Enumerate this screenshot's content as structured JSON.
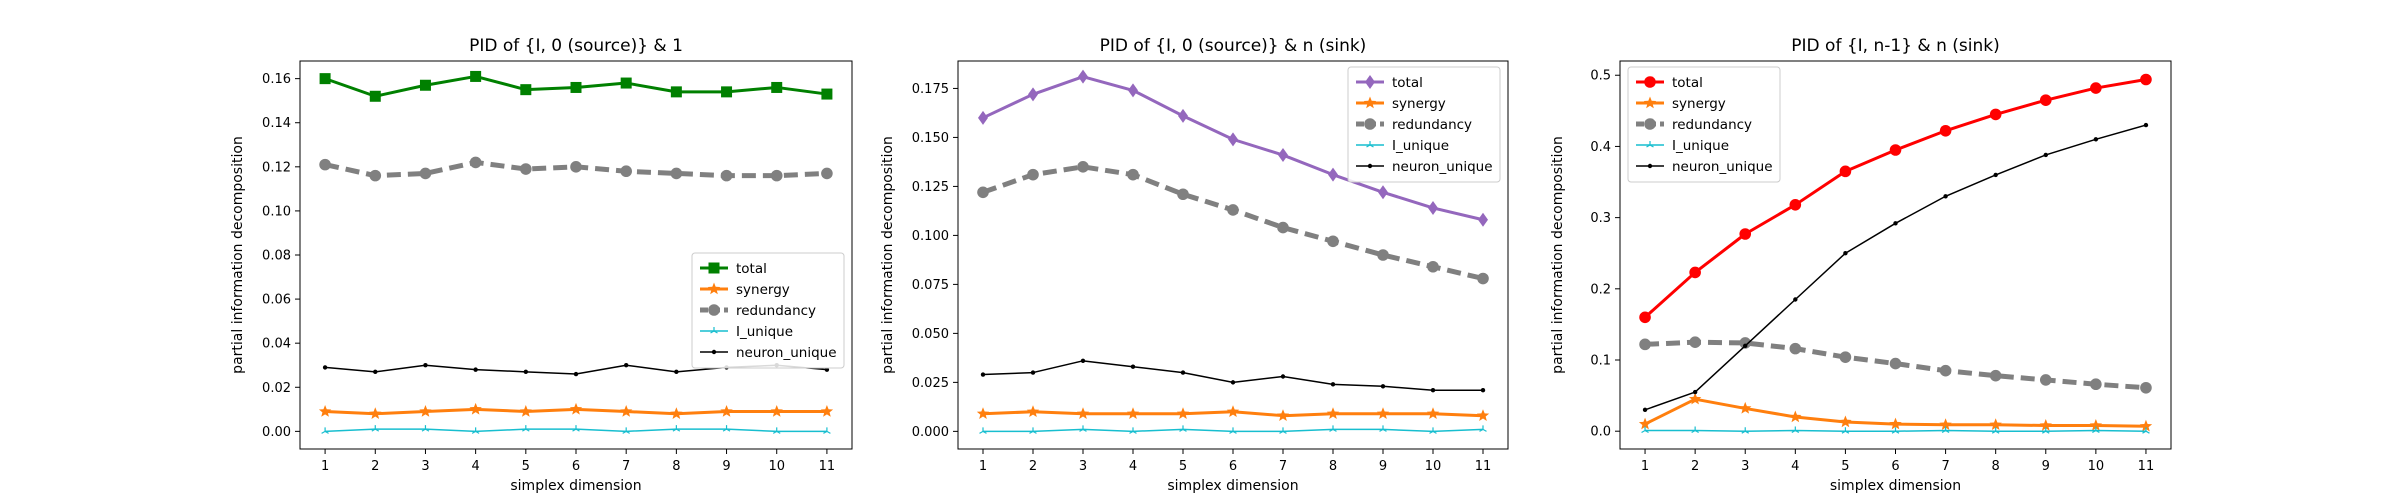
{
  "chart_data": [
    {
      "type": "line",
      "title": "PID of {I, 0 (source)} & 1",
      "xlabel": "simplex dimension",
      "ylabel": "partial information decomposition",
      "x": [
        1,
        2,
        3,
        4,
        5,
        6,
        7,
        8,
        9,
        10,
        11
      ],
      "xlim": [
        0.5,
        11.5
      ],
      "ylim": [
        -0.008,
        0.168
      ],
      "yticks": [
        0.0,
        0.02,
        0.04,
        0.06,
        0.08,
        0.1,
        0.12,
        0.14,
        0.16
      ],
      "yticklabels": [
        "0.00",
        "0.02",
        "0.04",
        "0.06",
        "0.08",
        "0.10",
        "0.12",
        "0.14",
        "0.16"
      ],
      "legend_position": "center-right",
      "series": [
        {
          "name": "total",
          "color": "#008000",
          "marker": "square",
          "dash": "solid",
          "values": [
            0.16,
            0.152,
            0.157,
            0.161,
            0.155,
            0.156,
            0.158,
            0.154,
            0.154,
            0.156,
            0.153
          ]
        },
        {
          "name": "synergy",
          "color": "#ff7f0e",
          "marker": "star",
          "dash": "solid",
          "values": [
            0.009,
            0.008,
            0.009,
            0.01,
            0.009,
            0.01,
            0.009,
            0.008,
            0.009,
            0.009,
            0.009
          ]
        },
        {
          "name": "redundancy",
          "color": "#808080",
          "marker": "circle",
          "dash": "dashed",
          "values": [
            0.121,
            0.116,
            0.117,
            0.122,
            0.119,
            0.12,
            0.118,
            0.117,
            0.116,
            0.116,
            0.117
          ]
        },
        {
          "name": "I_unique",
          "color": "#17becf",
          "marker": "tri",
          "dash": "solid",
          "values": [
            0.0,
            0.001,
            0.001,
            0.0,
            0.001,
            0.001,
            0.0,
            0.001,
            0.001,
            0.0,
            0.0
          ]
        },
        {
          "name": "neuron_unique",
          "color": "#000000",
          "marker": "dot",
          "dash": "solid",
          "values": [
            0.029,
            0.027,
            0.03,
            0.028,
            0.027,
            0.026,
            0.03,
            0.027,
            0.029,
            0.03,
            0.028
          ]
        }
      ]
    },
    {
      "type": "line",
      "title": "PID of {I, 0 (source)} & n (sink)",
      "xlabel": "simplex dimension",
      "ylabel": "partial information decomposition",
      "x": [
        1,
        2,
        3,
        4,
        5,
        6,
        7,
        8,
        9,
        10,
        11
      ],
      "xlim": [
        0.5,
        11.5
      ],
      "ylim": [
        -0.009,
        0.189
      ],
      "yticks": [
        0.0,
        0.025,
        0.05,
        0.075,
        0.1,
        0.125,
        0.15,
        0.175
      ],
      "yticklabels": [
        "0.000",
        "0.025",
        "0.050",
        "0.075",
        "0.100",
        "0.125",
        "0.150",
        "0.175"
      ],
      "legend_position": "top-right",
      "series": [
        {
          "name": "total",
          "color": "#9467bd",
          "marker": "diamond",
          "dash": "solid",
          "values": [
            0.16,
            0.172,
            0.181,
            0.174,
            0.161,
            0.149,
            0.141,
            0.131,
            0.122,
            0.114,
            0.108
          ]
        },
        {
          "name": "synergy",
          "color": "#ff7f0e",
          "marker": "star",
          "dash": "solid",
          "values": [
            0.009,
            0.01,
            0.009,
            0.009,
            0.009,
            0.01,
            0.008,
            0.009,
            0.009,
            0.009,
            0.008
          ]
        },
        {
          "name": "redundancy",
          "color": "#808080",
          "marker": "circle",
          "dash": "dashed",
          "values": [
            0.122,
            0.131,
            0.135,
            0.131,
            0.121,
            0.113,
            0.104,
            0.097,
            0.09,
            0.084,
            0.078
          ]
        },
        {
          "name": "I_unique",
          "color": "#17becf",
          "marker": "tri",
          "dash": "solid",
          "values": [
            0.0,
            0.0,
            0.001,
            0.0,
            0.001,
            0.0,
            0.0,
            0.001,
            0.001,
            0.0,
            0.001
          ]
        },
        {
          "name": "neuron_unique",
          "color": "#000000",
          "marker": "dot",
          "dash": "solid",
          "values": [
            0.029,
            0.03,
            0.036,
            0.033,
            0.03,
            0.025,
            0.028,
            0.024,
            0.023,
            0.021,
            0.021
          ]
        }
      ]
    },
    {
      "type": "line",
      "title": "PID of {I, n-1} & n (sink)",
      "xlabel": "simplex dimension",
      "ylabel": "partial information decomposition",
      "x": [
        1,
        2,
        3,
        4,
        5,
        6,
        7,
        8,
        9,
        10,
        11
      ],
      "xlim": [
        0.5,
        11.5
      ],
      "ylim": [
        -0.025,
        0.52
      ],
      "yticks": [
        0.0,
        0.1,
        0.2,
        0.3,
        0.4,
        0.5
      ],
      "yticklabels": [
        "0.0",
        "0.1",
        "0.2",
        "0.3",
        "0.4",
        "0.5"
      ],
      "legend_position": "top-left",
      "series": [
        {
          "name": "total",
          "color": "#ff0000",
          "marker": "circle",
          "dash": "solid",
          "values": [
            0.16,
            0.223,
            0.277,
            0.318,
            0.365,
            0.395,
            0.422,
            0.445,
            0.465,
            0.482,
            0.494
          ]
        },
        {
          "name": "synergy",
          "color": "#ff7f0e",
          "marker": "star",
          "dash": "solid",
          "values": [
            0.01,
            0.045,
            0.032,
            0.02,
            0.013,
            0.01,
            0.009,
            0.009,
            0.008,
            0.008,
            0.007
          ]
        },
        {
          "name": "redundancy",
          "color": "#808080",
          "marker": "circle",
          "dash": "dashed",
          "values": [
            0.122,
            0.125,
            0.124,
            0.116,
            0.104,
            0.095,
            0.085,
            0.078,
            0.072,
            0.066,
            0.061
          ]
        },
        {
          "name": "I_unique",
          "color": "#17becf",
          "marker": "tri",
          "dash": "solid",
          "values": [
            0.001,
            0.001,
            0.0,
            0.001,
            0.0,
            0.0,
            0.001,
            0.0,
            0.0,
            0.001,
            0.0
          ]
        },
        {
          "name": "neuron_unique",
          "color": "#000000",
          "marker": "dot",
          "dash": "solid",
          "values": [
            0.03,
            0.055,
            0.12,
            0.185,
            0.25,
            0.292,
            0.33,
            0.36,
            0.388,
            0.41,
            0.43
          ]
        }
      ]
    }
  ]
}
